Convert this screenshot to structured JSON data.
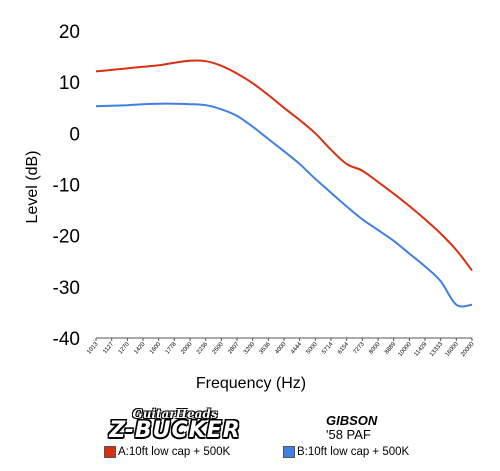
{
  "chart_data": {
    "type": "line",
    "xlabel": "Frequency (Hz)",
    "ylabel": "Level (dB)",
    "ylim": [
      -40,
      20
    ],
    "yticks": [
      20,
      10,
      0,
      -10,
      -20,
      -30,
      -40
    ],
    "x": [
      "1013",
      "1127",
      "1270",
      "1420",
      "1600",
      "1778",
      "2000",
      "2236",
      "2500",
      "2807",
      "3200",
      "3536",
      "4000",
      "4444",
      "5000",
      "5714",
      "6154",
      "7273",
      "8000",
      "8889",
      "10000",
      "11429",
      "13333",
      "16000",
      "20000"
    ],
    "grid": false,
    "series": [
      {
        "name": "A:10ft low cap + 500K",
        "color": "#d83010",
        "values": [
          12.1,
          12.4,
          12.7,
          13.0,
          13.3,
          13.8,
          14.2,
          14.1,
          13.2,
          11.7,
          9.8,
          7.5,
          5.0,
          2.6,
          0.0,
          -3.2,
          -6.0,
          -7.3,
          -9.5,
          -11.8,
          -14.2,
          -16.8,
          -19.6,
          -22.8,
          -26.8
        ]
      },
      {
        "name": "B:10ft low cap + 500K",
        "color": "#4080e0",
        "values": [
          5.3,
          5.4,
          5.5,
          5.7,
          5.8,
          5.8,
          5.7,
          5.5,
          4.7,
          3.4,
          1.3,
          -1.1,
          -3.5,
          -6.0,
          -8.9,
          -11.6,
          -14.3,
          -16.8,
          -18.9,
          -21.0,
          -23.5,
          -26.0,
          -28.9,
          -33.5,
          -33.5
        ]
      }
    ],
    "legend_placement": "bottom"
  },
  "footer": {
    "left_brand_small": "GuitarHeads",
    "left_brand_big": "Z-BUCKER",
    "right_brand_title": "GIBSON",
    "right_brand_sub": "'58 PAF"
  }
}
